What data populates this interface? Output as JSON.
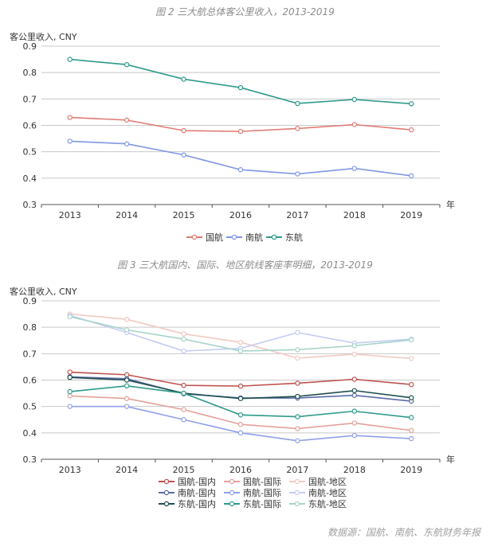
{
  "chart_data": [
    {
      "type": "line",
      "title": "图 2 三大航总体客公里收入，2013-2019",
      "ylabel": "客公里收入, CNY",
      "xlabel": "年",
      "ylim": [
        0.3,
        0.9
      ],
      "yticks": [
        "0.3",
        "0.4",
        "0.5",
        "0.6",
        "0.7",
        "0.8",
        "0.9"
      ],
      "categories": [
        "2013",
        "2014",
        "2015",
        "2016",
        "2017",
        "2018",
        "2019"
      ],
      "grid": true,
      "legend_position": "bottom",
      "series": [
        {
          "name": "国航",
          "color": "#e07a73",
          "values": [
            0.63,
            0.62,
            0.58,
            0.577,
            0.588,
            0.603,
            0.583
          ]
        },
        {
          "name": "南航",
          "color": "#8097e3",
          "values": [
            0.54,
            0.53,
            0.488,
            0.432,
            0.416,
            0.437,
            0.409
          ]
        },
        {
          "name": "东航",
          "color": "#2e9a8a",
          "values": [
            0.85,
            0.83,
            0.775,
            0.743,
            0.683,
            0.698,
            0.682
          ]
        }
      ]
    },
    {
      "type": "line",
      "title": "图 3 三大航国内、国际、地区航线客座率明细，2013-2019",
      "ylabel": "客公里收入, CNY",
      "xlabel": "年",
      "ylim": [
        0.3,
        0.9
      ],
      "yticks": [
        "0.3",
        "0.4",
        "0.5",
        "0.6",
        "0.7",
        "0.8",
        "0.9"
      ],
      "categories": [
        "2013",
        "2014",
        "2015",
        "2016",
        "2017",
        "2018",
        "2019"
      ],
      "grid": true,
      "legend_position": "bottom",
      "series": [
        {
          "name": "国航-国内",
          "color": "#c0504d",
          "values": [
            0.63,
            0.62,
            0.58,
            0.577,
            0.588,
            0.603,
            0.583
          ]
        },
        {
          "name": "国航-国际",
          "color": "#e5a19a",
          "values": [
            0.54,
            0.53,
            0.488,
            0.432,
            0.416,
            0.437,
            0.409
          ]
        },
        {
          "name": "国航-地区",
          "color": "#f2c9c4",
          "values": [
            0.85,
            0.83,
            0.775,
            0.743,
            0.683,
            0.698,
            0.682
          ]
        },
        {
          "name": "南航-国内",
          "color": "#5a6aa6",
          "values": [
            0.612,
            0.605,
            0.548,
            0.532,
            0.532,
            0.542,
            0.52
          ]
        },
        {
          "name": "南航-国际",
          "color": "#8fa0e8",
          "values": [
            0.5,
            0.5,
            0.45,
            0.4,
            0.37,
            0.39,
            0.378
          ]
        },
        {
          "name": "南航-地区",
          "color": "#c5cdf2",
          "values": [
            0.845,
            0.78,
            0.71,
            0.72,
            0.78,
            0.74,
            0.755
          ]
        },
        {
          "name": "东航-国内",
          "color": "#1f4e4f",
          "values": [
            0.61,
            0.6,
            0.55,
            0.53,
            0.538,
            0.56,
            0.533
          ]
        },
        {
          "name": "东航-国际",
          "color": "#2e9a8a",
          "values": [
            0.556,
            0.578,
            0.55,
            0.468,
            0.461,
            0.482,
            0.458
          ]
        },
        {
          "name": "东航-地区",
          "color": "#a7d3c9",
          "values": [
            0.84,
            0.79,
            0.755,
            0.71,
            0.715,
            0.73,
            0.752
          ]
        }
      ]
    }
  ],
  "source": "数据源：国航、南航、东航财务年报"
}
